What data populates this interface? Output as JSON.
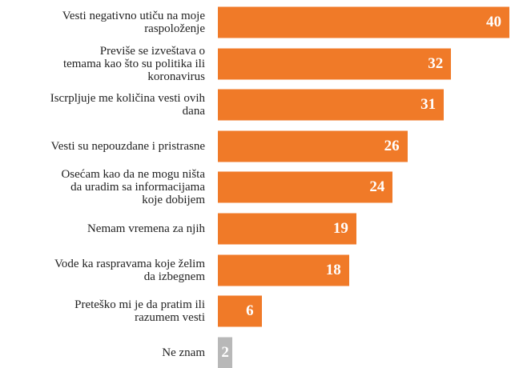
{
  "chart_data": {
    "type": "bar",
    "orientation": "horizontal",
    "categories": [
      "Vesti negativno utiču na moje\nraspoloženje",
      "Previše se izveštava o\ntemama kao što su politika ili\nkoronavirus",
      "Iscrpljuje me količina vesti ovih\ndana",
      "Vesti su nepouzdane i pristrasne",
      "Osećam kao da ne mogu ništa\nda uradim sa informacijama\nkoje dobijem",
      "Nemam vremena za njih",
      "Vode ka raspravama koje želim\nda izbegnem",
      "Preteško mi je da pratim ili\nrazumem vesti",
      "Ne znam"
    ],
    "values": [
      40,
      32,
      31,
      26,
      24,
      19,
      18,
      6,
      2
    ],
    "colors": [
      "#f07a28",
      "#f07a28",
      "#f07a28",
      "#f07a28",
      "#f07a28",
      "#f07a28",
      "#f07a28",
      "#f07a28",
      "#b8b8b8"
    ]
  }
}
